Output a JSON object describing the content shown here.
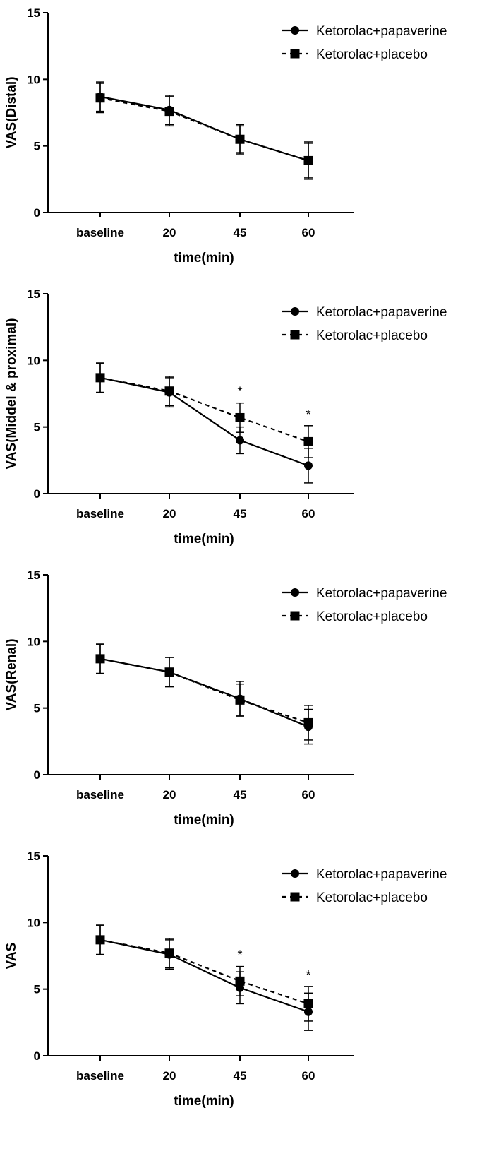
{
  "chart_data": [
    {
      "type": "line",
      "ylabel": "VAS(Distal)",
      "xlabel": "time(min)",
      "categories": [
        "baseline",
        "20",
        "45",
        "60"
      ],
      "ylim": [
        0,
        15
      ],
      "yticks": [
        "0",
        "5",
        "10",
        "15"
      ],
      "legend": {
        "position": "top-right"
      },
      "significance": [
        "",
        "",
        "",
        ""
      ],
      "series": [
        {
          "name": "Ketorolac+papaverine",
          "marker": "circle",
          "line": "solid",
          "values": [
            8.7,
            7.7,
            5.5,
            3.9
          ],
          "err": [
            1.1,
            1.1,
            1.1,
            1.4
          ]
        },
        {
          "name": "Ketorolac+placebo",
          "marker": "square",
          "line": "dashed",
          "values": [
            8.6,
            7.6,
            5.5,
            3.9
          ],
          "err": [
            1.1,
            1.1,
            1.0,
            1.3
          ]
        }
      ]
    },
    {
      "type": "line",
      "ylabel": "VAS(Middel & proximal)",
      "xlabel": "time(min)",
      "categories": [
        "baseline",
        "20",
        "45",
        "60"
      ],
      "ylim": [
        0,
        15
      ],
      "yticks": [
        "0",
        "5",
        "10",
        "15"
      ],
      "legend": {
        "position": "top-right"
      },
      "significance": [
        "",
        "",
        "*",
        "*"
      ],
      "series": [
        {
          "name": "Ketorolac+papaverine",
          "marker": "circle",
          "line": "solid",
          "values": [
            8.7,
            7.6,
            4.0,
            2.1
          ],
          "err": [
            1.1,
            1.1,
            1.0,
            1.3
          ]
        },
        {
          "name": "Ketorolac+placebo",
          "marker": "square",
          "line": "dashed",
          "values": [
            8.7,
            7.7,
            5.7,
            3.9
          ],
          "err": [
            1.1,
            1.1,
            1.1,
            1.2
          ]
        }
      ]
    },
    {
      "type": "line",
      "ylabel": "VAS(Renal)",
      "xlabel": "time(min)",
      "categories": [
        "baseline",
        "20",
        "45",
        "60"
      ],
      "ylim": [
        0,
        15
      ],
      "yticks": [
        "0",
        "5",
        "10",
        "15"
      ],
      "legend": {
        "position": "top-right"
      },
      "significance": [
        "",
        "",
        "",
        ""
      ],
      "series": [
        {
          "name": "Ketorolac+papaverine",
          "marker": "circle",
          "line": "solid",
          "values": [
            8.7,
            7.7,
            5.7,
            3.6
          ],
          "err": [
            1.1,
            1.1,
            1.3,
            1.3
          ]
        },
        {
          "name": "Ketorolac+placebo",
          "marker": "square",
          "line": "dashed",
          "values": [
            8.7,
            7.7,
            5.6,
            3.9
          ],
          "err": [
            1.1,
            1.1,
            1.2,
            1.3
          ]
        }
      ]
    },
    {
      "type": "line",
      "ylabel": "VAS",
      "xlabel": "time(min)",
      "categories": [
        "baseline",
        "20",
        "45",
        "60"
      ],
      "ylim": [
        0,
        15
      ],
      "yticks": [
        "0",
        "5",
        "10",
        "15"
      ],
      "legend": {
        "position": "top-right"
      },
      "significance": [
        "",
        "",
        "*",
        "*"
      ],
      "series": [
        {
          "name": "Ketorolac+papaverine",
          "marker": "circle",
          "line": "solid",
          "values": [
            8.7,
            7.6,
            5.1,
            3.3
          ],
          "err": [
            1.1,
            1.1,
            1.2,
            1.4
          ]
        },
        {
          "name": "Ketorolac+placebo",
          "marker": "square",
          "line": "dashed",
          "values": [
            8.7,
            7.7,
            5.6,
            3.9
          ],
          "err": [
            1.1,
            1.1,
            1.1,
            1.3
          ]
        }
      ]
    }
  ]
}
